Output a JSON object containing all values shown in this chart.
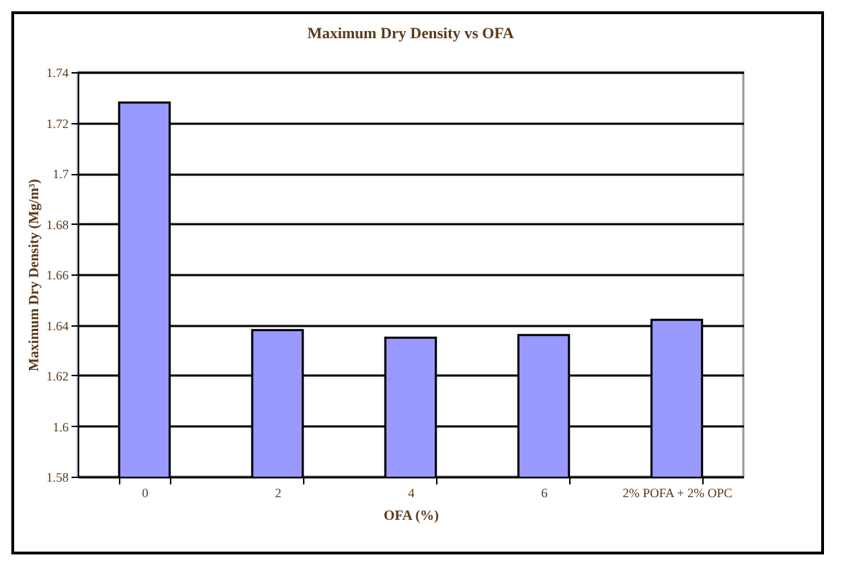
{
  "chart_data": {
    "type": "bar",
    "title": "Maximum Dry Density vs OFA",
    "xlabel": "OFA (%)",
    "ylabel": "Maximum Dry Density (Mg/m³)",
    "categories": [
      "0",
      "2",
      "4",
      "6",
      "2% POFA + 2% OPC"
    ],
    "values": [
      1.728,
      1.638,
      1.635,
      1.636,
      1.642
    ],
    "color": "#9999ff",
    "ylim": [
      1.58,
      1.74
    ],
    "yticks": [
      1.58,
      1.6,
      1.62,
      1.64,
      1.66,
      1.68,
      1.7,
      1.72,
      1.74
    ],
    "grid": "y"
  }
}
